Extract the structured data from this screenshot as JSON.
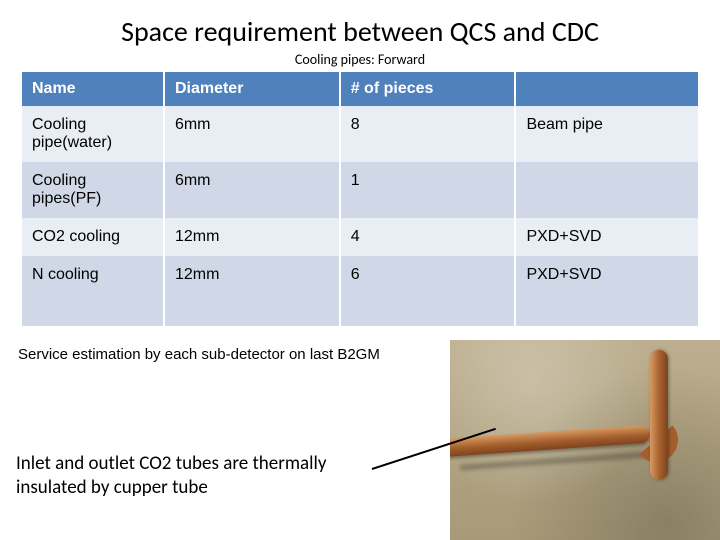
{
  "title": "Space requirement between QCS and CDC",
  "subtitle": "Cooling pipes: Forward",
  "table": {
    "columns": [
      "Name",
      "Diameter",
      "# of pieces",
      ""
    ],
    "rows": [
      {
        "name": "Cooling pipe(water)",
        "diameter": "6mm",
        "pieces": "8",
        "note": "Beam pipe",
        "tall": false
      },
      {
        "name": "Cooling pipes(PF)",
        "diameter": "6mm",
        "pieces": "1",
        "note": "",
        "tall": false
      },
      {
        "name": "CO2 cooling",
        "diameter": "12mm",
        "pieces": "4",
        "note": "PXD+SVD",
        "tall": false
      },
      {
        "name": "N cooling",
        "diameter": "12mm",
        "pieces": "6",
        "note": "PXD+SVD",
        "tall": true
      }
    ]
  },
  "service_note": "Service estimation by each sub-detector on  last B2GM",
  "body_text": "Inlet and outlet CO2 tubes are thermally insulated by cupper tube",
  "colors": {
    "header_bg": "#4f81bd",
    "header_fg": "#ffffff",
    "row_odd": "#e9edf4",
    "row_even": "#d0d8e8",
    "copper_light": "#d79a62",
    "copper_mid": "#a45e2c",
    "copper_dark": "#7d431e",
    "photo_bg": "#b7a887"
  },
  "typography": {
    "title_fontsize": 28,
    "subtitle_fontsize": 14,
    "table_fontsize": 16,
    "body_fontsize": 19
  }
}
